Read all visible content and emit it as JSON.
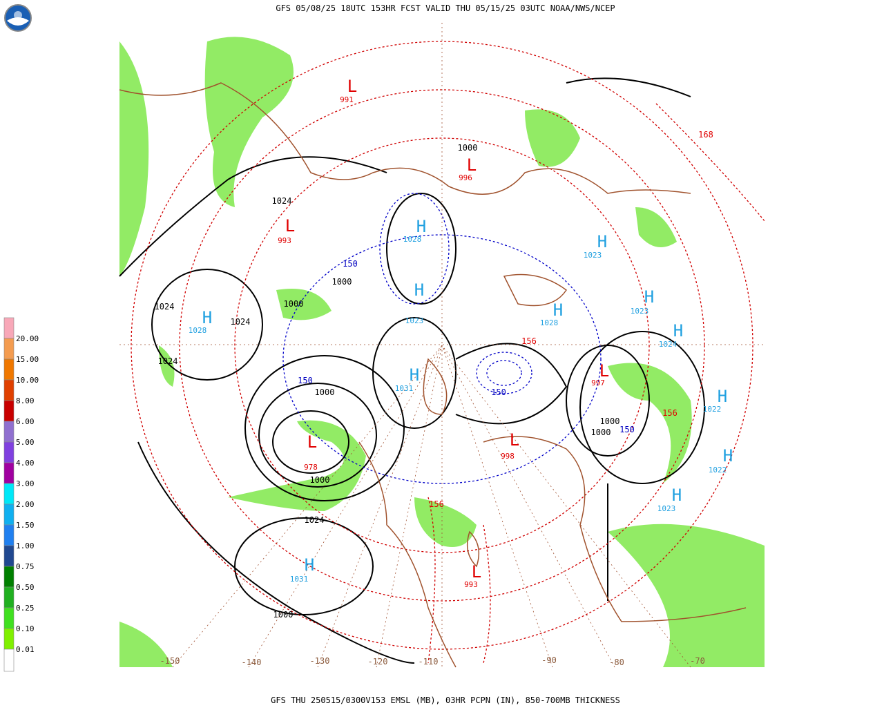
{
  "header": {
    "title": "GFS 05/08/25 18UTC 153HR FCST VALID THU 05/15/25 03UTC NOAA/NWS/NCEP"
  },
  "footer": {
    "text": "GFS THU 250515/0300V153 EMSL (MB), 03HR PCPN (IN), 850-700MB THICKNESS"
  },
  "legend": {
    "items": [
      {
        "label": "20.00",
        "color": "#f8a8b8"
      },
      {
        "label": "15.00",
        "color": "#f49c50"
      },
      {
        "label": "10.00",
        "color": "#f07800"
      },
      {
        "label": "8.00",
        "color": "#e04000"
      },
      {
        "label": "6.00",
        "color": "#c80000"
      },
      {
        "label": "5.00",
        "color": "#9070d0"
      },
      {
        "label": "4.00",
        "color": "#8040e0"
      },
      {
        "label": "3.00",
        "color": "#a000a0"
      },
      {
        "label": "2.00",
        "color": "#00e8f8"
      },
      {
        "label": "1.50",
        "color": "#10b0f0"
      },
      {
        "label": "1.00",
        "color": "#2080f0"
      },
      {
        "label": "0.75",
        "color": "#204890"
      },
      {
        "label": "0.50",
        "color": "#008000"
      },
      {
        "label": "0.25",
        "color": "#20b020"
      },
      {
        "label": "0.10",
        "color": "#40e020"
      },
      {
        "label": "0.01",
        "color": "#80f000"
      }
    ]
  },
  "map": {
    "highs": [
      {
        "symbol": "H",
        "value": "1028"
      },
      {
        "symbol": "H",
        "value": "1031"
      },
      {
        "symbol": "H",
        "value": "1028"
      },
      {
        "symbol": "H",
        "value": "1023"
      },
      {
        "symbol": "H",
        "value": "1031"
      },
      {
        "symbol": "H",
        "value": "1023"
      },
      {
        "symbol": "H",
        "value": "1028"
      },
      {
        "symbol": "H",
        "value": "1023"
      },
      {
        "symbol": "H",
        "value": "1024"
      },
      {
        "symbol": "H",
        "value": "1022"
      },
      {
        "symbol": "H",
        "value": "1022"
      },
      {
        "symbol": "H",
        "value": "1023"
      }
    ],
    "lows": [
      {
        "symbol": "L",
        "value": "978"
      },
      {
        "symbol": "L",
        "value": "997"
      },
      {
        "symbol": "L",
        "value": "998"
      },
      {
        "symbol": "L",
        "value": "993"
      },
      {
        "symbol": "L",
        "value": "996"
      },
      {
        "symbol": "L",
        "value": "993"
      },
      {
        "symbol": "L",
        "value": "991"
      }
    ],
    "isobars": [
      "1024",
      "1024",
      "1000",
      "1000",
      "1024",
      "1000",
      "1024",
      "1000",
      "1000",
      "1000",
      "1000",
      "1024",
      "1000"
    ],
    "thickness": [
      "156",
      "150",
      "150",
      "156",
      "150",
      "168",
      "156",
      "150"
    ],
    "longitudes": [
      "-150",
      "-140",
      "-130",
      "-120",
      "-110",
      "-90",
      "-80",
      "-70"
    ]
  }
}
